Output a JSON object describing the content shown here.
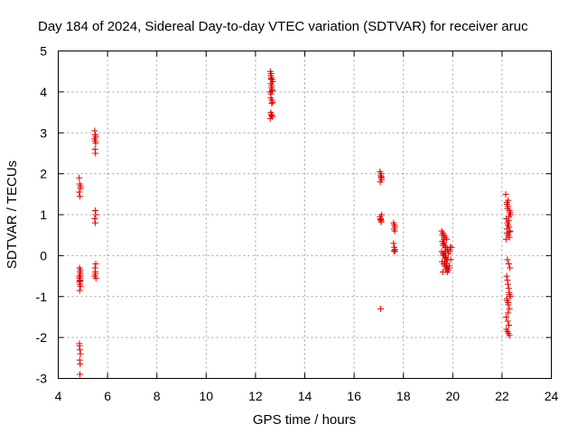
{
  "chart_data": {
    "type": "scatter",
    "title": "Day 184 of 2024, Sidereal Day-to-day VTEC variation (SDTVAR) for receiver aruc",
    "xlabel": "GPS time / hours",
    "ylabel": "SDTVAR / TECUs",
    "xlim": [
      4,
      24
    ],
    "ylim": [
      -3,
      5
    ],
    "xticks": [
      4,
      6,
      8,
      10,
      12,
      14,
      16,
      18,
      20,
      22,
      24
    ],
    "yticks": [
      -3,
      -2,
      -1,
      0,
      1,
      2,
      3,
      4,
      5
    ],
    "grid": true,
    "marker": "+",
    "color": "#e00000",
    "series": [
      {
        "name": "SDTVAR",
        "x": [
          4.85,
          4.87,
          4.9,
          4.85,
          4.88,
          4.9,
          4.86,
          4.88,
          4.9,
          4.85,
          4.87,
          4.89,
          4.86,
          4.88,
          4.9,
          4.87,
          4.89,
          4.86,
          4.88,
          4.9,
          4.86,
          4.88,
          4.9,
          4.87,
          4.89,
          4.86,
          4.88,
          5.48,
          5.5,
          5.52,
          5.47,
          5.5,
          5.52,
          5.49,
          5.51,
          5.5,
          5.52,
          5.48,
          5.5,
          5.52,
          5.49,
          5.51,
          5.53,
          5.48,
          5.5,
          12.6,
          12.62,
          12.65,
          12.67,
          12.7,
          12.62,
          12.65,
          12.68,
          12.6,
          12.63,
          12.66,
          12.69,
          12.62,
          12.65,
          12.68,
          12.6,
          12.63,
          12.66,
          12.62,
          12.65,
          12.68,
          12.62,
          12.66,
          17.05,
          17.08,
          17.1,
          17.12,
          17.06,
          17.09,
          17.11,
          17.05,
          17.08,
          17.1,
          17.07,
          17.1,
          17.08,
          17.12,
          17.6,
          17.63,
          17.66,
          17.62,
          17.65,
          17.6,
          17.63,
          17.66,
          17.62,
          17.65,
          19.55,
          19.6,
          19.65,
          19.7,
          19.75,
          19.58,
          19.62,
          19.68,
          19.72,
          19.78,
          19.55,
          19.6,
          19.66,
          19.72,
          19.8,
          19.57,
          19.63,
          19.69,
          19.75,
          19.82,
          19.6,
          19.65,
          19.7,
          19.76,
          19.85,
          19.58,
          19.64,
          19.7,
          19.74,
          19.8,
          19.62,
          19.68,
          19.73,
          19.78,
          19.9,
          19.6,
          19.67,
          19.72,
          19.78,
          19.88,
          19.65,
          19.7,
          19.75,
          19.82,
          19.92,
          19.7,
          19.76,
          19.8,
          19.86,
          19.95,
          22.15,
          22.2,
          22.25,
          22.3,
          22.35,
          22.18,
          22.22,
          22.28,
          22.33,
          22.2,
          22.25,
          22.3,
          22.16,
          22.22,
          22.27,
          22.32,
          22.19,
          22.24,
          22.29,
          22.34,
          22.2,
          22.25,
          22.3,
          22.17,
          22.23,
          22.28,
          22.18,
          22.22,
          22.26,
          22.3,
          22.2,
          22.24,
          22.28,
          22.32,
          22.2,
          22.25,
          22.3,
          22.22,
          22.27,
          22.2,
          22.25,
          22.3,
          22.22,
          22.27,
          22.24
        ],
        "y": [
          1.9,
          1.75,
          1.65,
          1.55,
          1.45,
          1.7,
          -0.3,
          -0.4,
          -0.45,
          -0.5,
          -0.55,
          -0.6,
          -0.65,
          -0.7,
          -0.75,
          -0.85,
          -0.5,
          -0.55,
          -0.62,
          -0.35,
          -2.2,
          -2.3,
          -2.4,
          -2.55,
          -2.65,
          -2.15,
          -2.9,
          3.05,
          2.95,
          2.9,
          2.85,
          2.8,
          2.75,
          2.6,
          2.5,
          1.1,
          1.0,
          0.9,
          0.8,
          -0.2,
          -0.3,
          -0.4,
          -0.55,
          -0.5,
          -0.45,
          4.5,
          4.4,
          4.35,
          4.3,
          4.25,
          4.2,
          4.1,
          4.05,
          4.0,
          3.95,
          3.8,
          3.75,
          3.5,
          3.45,
          3.4,
          3.35,
          4.45,
          4.15,
          3.85,
          3.42,
          4.02,
          4.32,
          3.72,
          2.05,
          1.95,
          1.9,
          1.85,
          1.8,
          2.0,
          1.92,
          0.95,
          0.9,
          0.85,
          0.88,
          0.82,
          -1.3,
          1.0,
          0.8,
          0.75,
          0.7,
          0.65,
          0.6,
          0.3,
          0.2,
          0.15,
          0.12,
          0.1,
          0.6,
          0.55,
          0.5,
          0.45,
          0.4,
          0.35,
          0.3,
          0.25,
          0.2,
          0.15,
          0.1,
          0.05,
          0.0,
          -0.05,
          -0.1,
          -0.15,
          -0.2,
          -0.25,
          -0.3,
          -0.35,
          -0.4,
          0.4,
          0.2,
          -0.1,
          -0.3,
          0.5,
          0.3,
          0.1,
          -0.2,
          0.15,
          0.0,
          -0.15,
          -0.25,
          -0.3,
          0.2,
          0.25,
          0.05,
          -0.35,
          -0.4,
          0.1,
          0.45,
          -0.05,
          -0.2,
          0.05,
          -0.1,
          0.1,
          -0.3,
          0.15,
          -0.25,
          0.2,
          1.5,
          1.3,
          1.2,
          1.1,
          1.0,
          0.9,
          0.8,
          0.7,
          0.6,
          0.55,
          0.5,
          0.45,
          0.4,
          -0.1,
          -0.2,
          -0.3,
          -0.5,
          -0.7,
          -0.9,
          -1.0,
          -1.1,
          -1.2,
          -1.3,
          -1.5,
          -1.6,
          -1.7,
          -1.8,
          -1.85,
          -1.9,
          -1.95,
          0.65,
          0.75,
          0.95,
          1.05,
          1.25,
          1.35,
          0.58,
          -0.6,
          -0.8,
          -1.05,
          -1.15,
          -0.95,
          1.15,
          0.85,
          -1.4
        ]
      }
    ]
  }
}
